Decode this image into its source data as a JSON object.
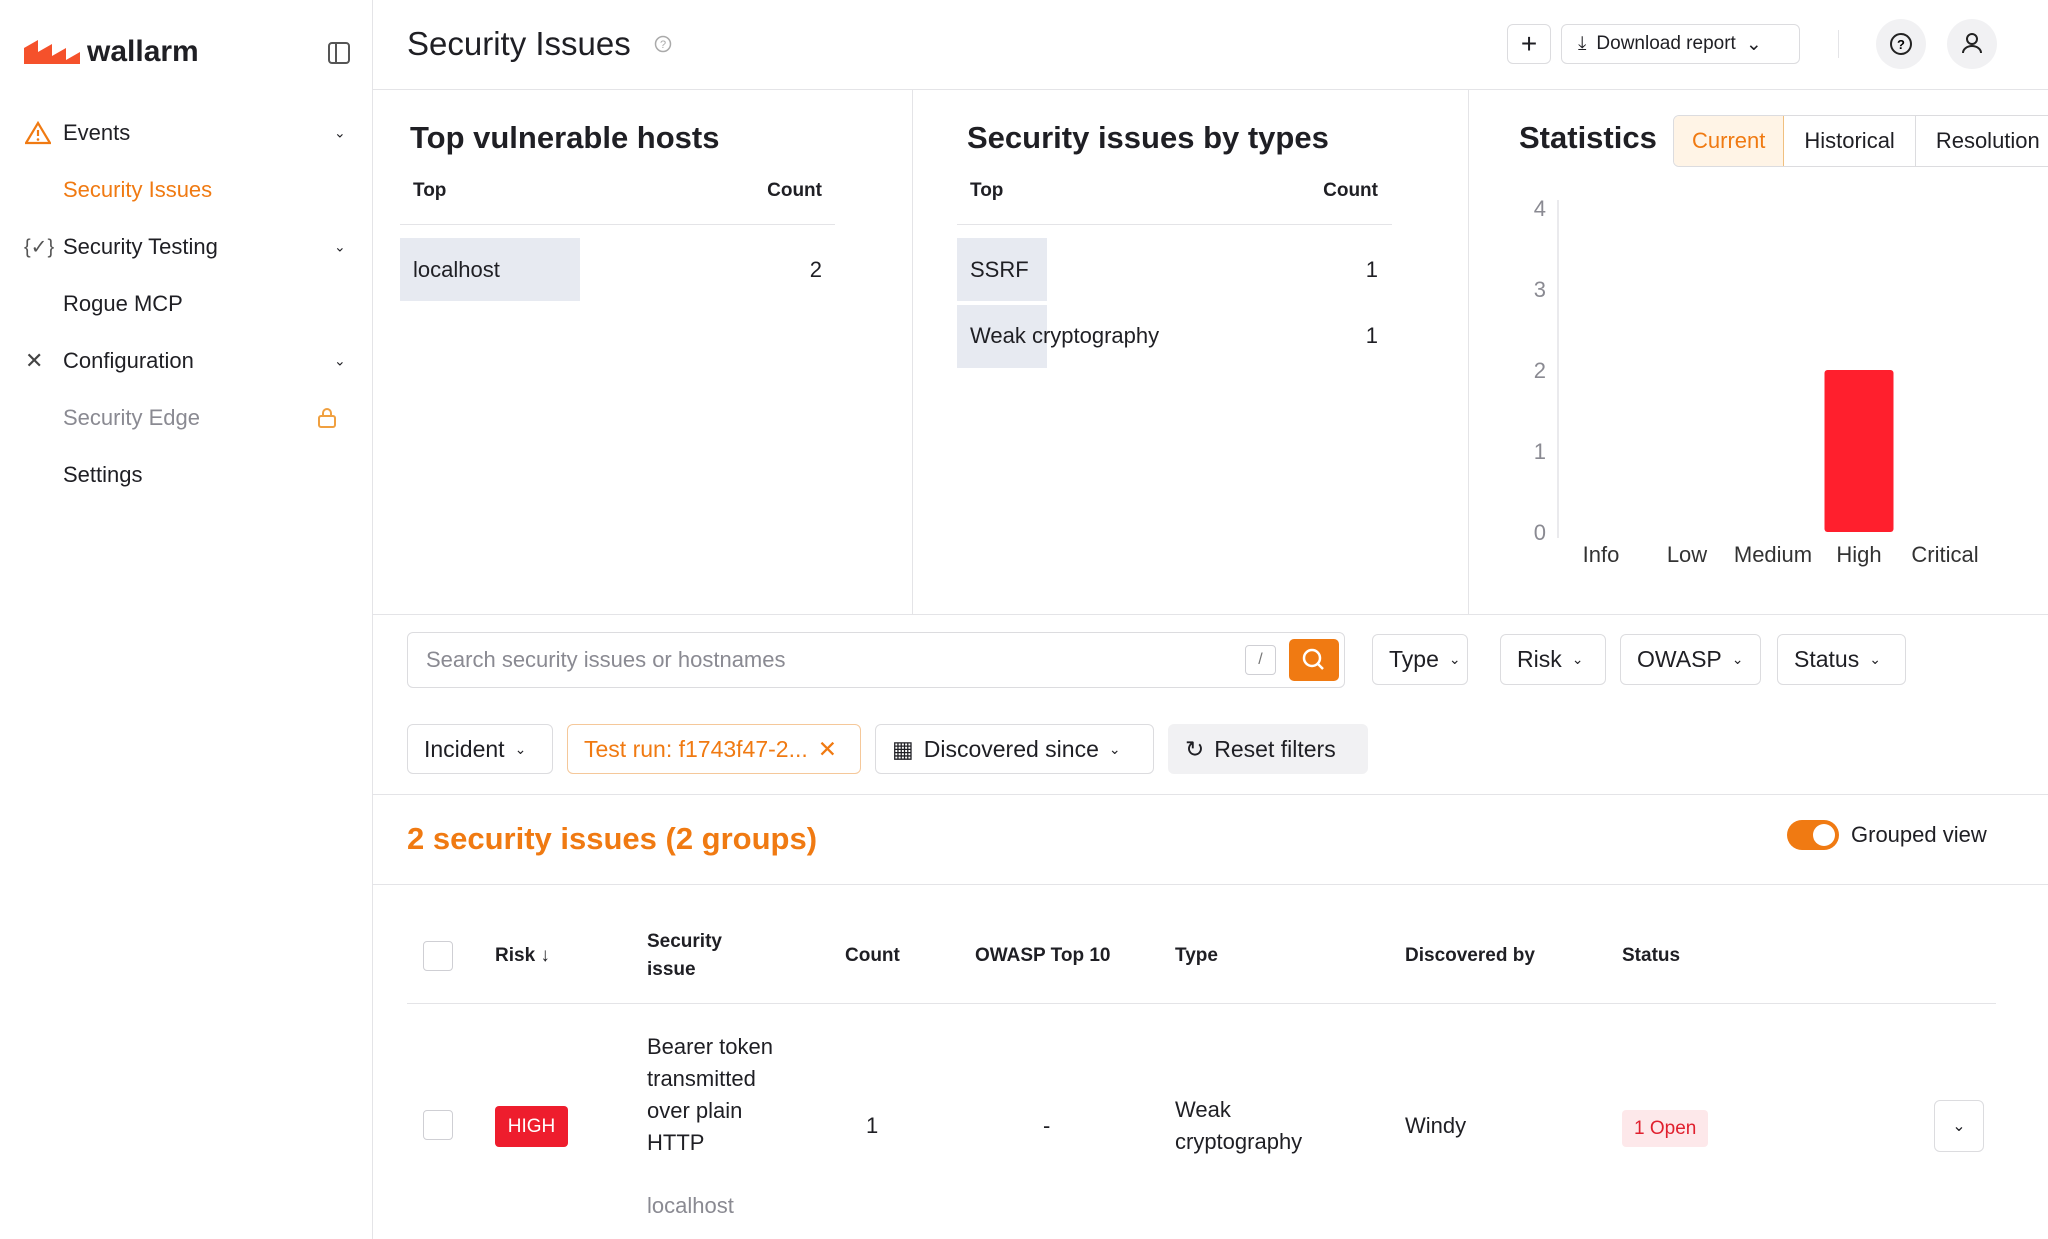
{
  "sidebar": {
    "logo": "wallarm",
    "nav": [
      {
        "label": "Events"
      },
      {
        "label": "Security Issues"
      },
      {
        "label": "Security Testing"
      },
      {
        "label": "Rogue MCP"
      },
      {
        "label": "Configuration"
      },
      {
        "label": "Security Edge"
      },
      {
        "label": "Settings"
      }
    ]
  },
  "header": {
    "title": "Security Issues",
    "download": "Download report"
  },
  "top_hosts": {
    "title": "Top vulnerable hosts",
    "columns": [
      "Top",
      "Count"
    ],
    "rows": [
      {
        "label": "localhost",
        "count": 2
      }
    ]
  },
  "by_types": {
    "title": "Security issues by types",
    "columns": [
      "Top",
      "Count"
    ],
    "rows": [
      {
        "label": "SSRF",
        "count": 1
      },
      {
        "label": "Weak cryptography",
        "count": 1
      }
    ]
  },
  "statistics": {
    "tabs": [
      "Current",
      "Historical",
      "Resolution"
    ]
  },
  "chart_data": {
    "type": "bar",
    "title": "Statistics",
    "categories": [
      "Info",
      "Low",
      "Medium",
      "High",
      "Critical"
    ],
    "values": [
      0,
      0,
      0,
      2,
      0
    ],
    "color": "#ff1f2d",
    "ylim": [
      0,
      4
    ],
    "yticks": [
      0,
      1,
      2,
      3,
      4
    ],
    "grid": false
  },
  "filters": {
    "search_placeholder": "Search security issues or hostnames",
    "shortcut": "/",
    "dropdowns": [
      "Type",
      "Risk",
      "OWASP",
      "Status",
      "Incident"
    ],
    "chip": "Test run: f1743f47-2...",
    "date": "Discovered since",
    "reset": "Reset filters"
  },
  "summary": {
    "title": "2 security issues (2 groups)",
    "toggle": "Grouped view"
  },
  "table": {
    "columns": [
      "Risk",
      "Security issue",
      "Count",
      "OWASP Top 10",
      "Type",
      "Discovered by",
      "Status"
    ],
    "rows": [
      {
        "risk": "HIGH",
        "issue": "Bearer token transmitted over plain HTTP",
        "host": "localhost",
        "count": 1,
        "owasp": "-",
        "type": "Weak cryptography",
        "discovered_by": "Windy",
        "status": "1 Open"
      }
    ]
  }
}
